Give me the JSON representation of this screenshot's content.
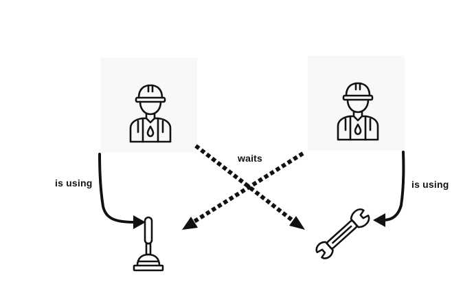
{
  "labels": {
    "left_using": "is using",
    "right_using": "is using",
    "waits": "waits"
  },
  "icons": {
    "worker_left": "worker-icon",
    "worker_right": "worker-icon",
    "tool_left": "plunger-icon",
    "tool_right": "wrench-icon"
  },
  "colors": {
    "ink": "#111111",
    "card_background": "#f8f8f8"
  }
}
